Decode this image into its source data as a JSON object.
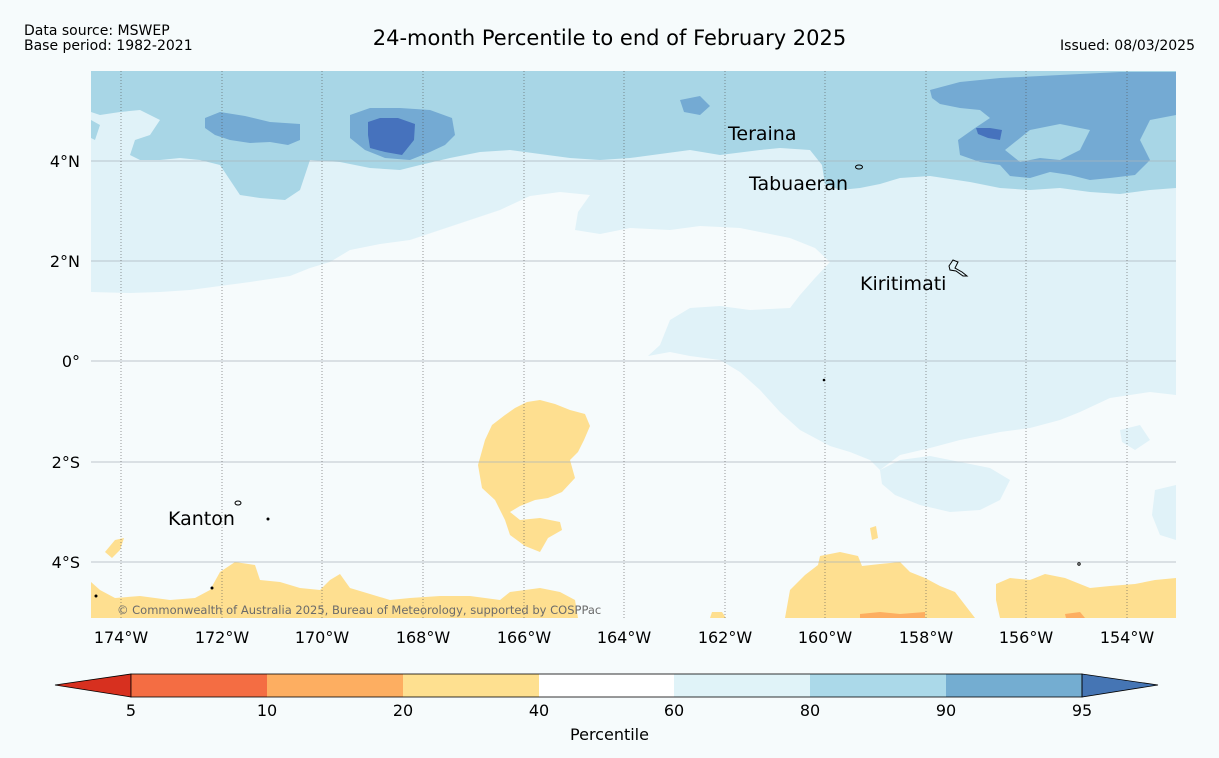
{
  "header": {
    "data_source": "Data source: MSWEP",
    "base_period": "Base period: 1982-2021",
    "title": "24-month Percentile to end of February 2025",
    "issued": "Issued: 08/03/2025"
  },
  "map": {
    "lon_labels": [
      "174°W",
      "172°W",
      "170°W",
      "168°W",
      "166°W",
      "164°W",
      "162°W",
      "160°W",
      "158°W",
      "156°W",
      "154°W"
    ],
    "lat_labels": [
      "4°N",
      "2°N",
      "0°",
      "2°S",
      "4°S"
    ],
    "places": [
      "Teraina",
      "Tabuaeran",
      "Kiritimati",
      "Kanton"
    ],
    "copyright": "© Commonwealth of Australia 2025, Bureau of Meteorology, supported by COSPPac",
    "region_colors": {
      "p60_80": "#e0f2f8",
      "p80_90": "#a8d6e6",
      "p90_95": "#74aad3",
      "p95_plus": "#4672bd",
      "p20_40": "#fedf90",
      "p10_20": "#fdae61",
      "p40_60": "#f6fbfc"
    }
  },
  "colorbar": {
    "ticks": [
      "5",
      "10",
      "20",
      "40",
      "60",
      "80",
      "90",
      "95"
    ],
    "colors": [
      "#d7301f",
      "#f46d43",
      "#fdae61",
      "#fee090",
      "#ffffff",
      "#e0f3f8",
      "#abd9e9",
      "#74add1",
      "#4575b4"
    ],
    "label": "Percentile"
  }
}
